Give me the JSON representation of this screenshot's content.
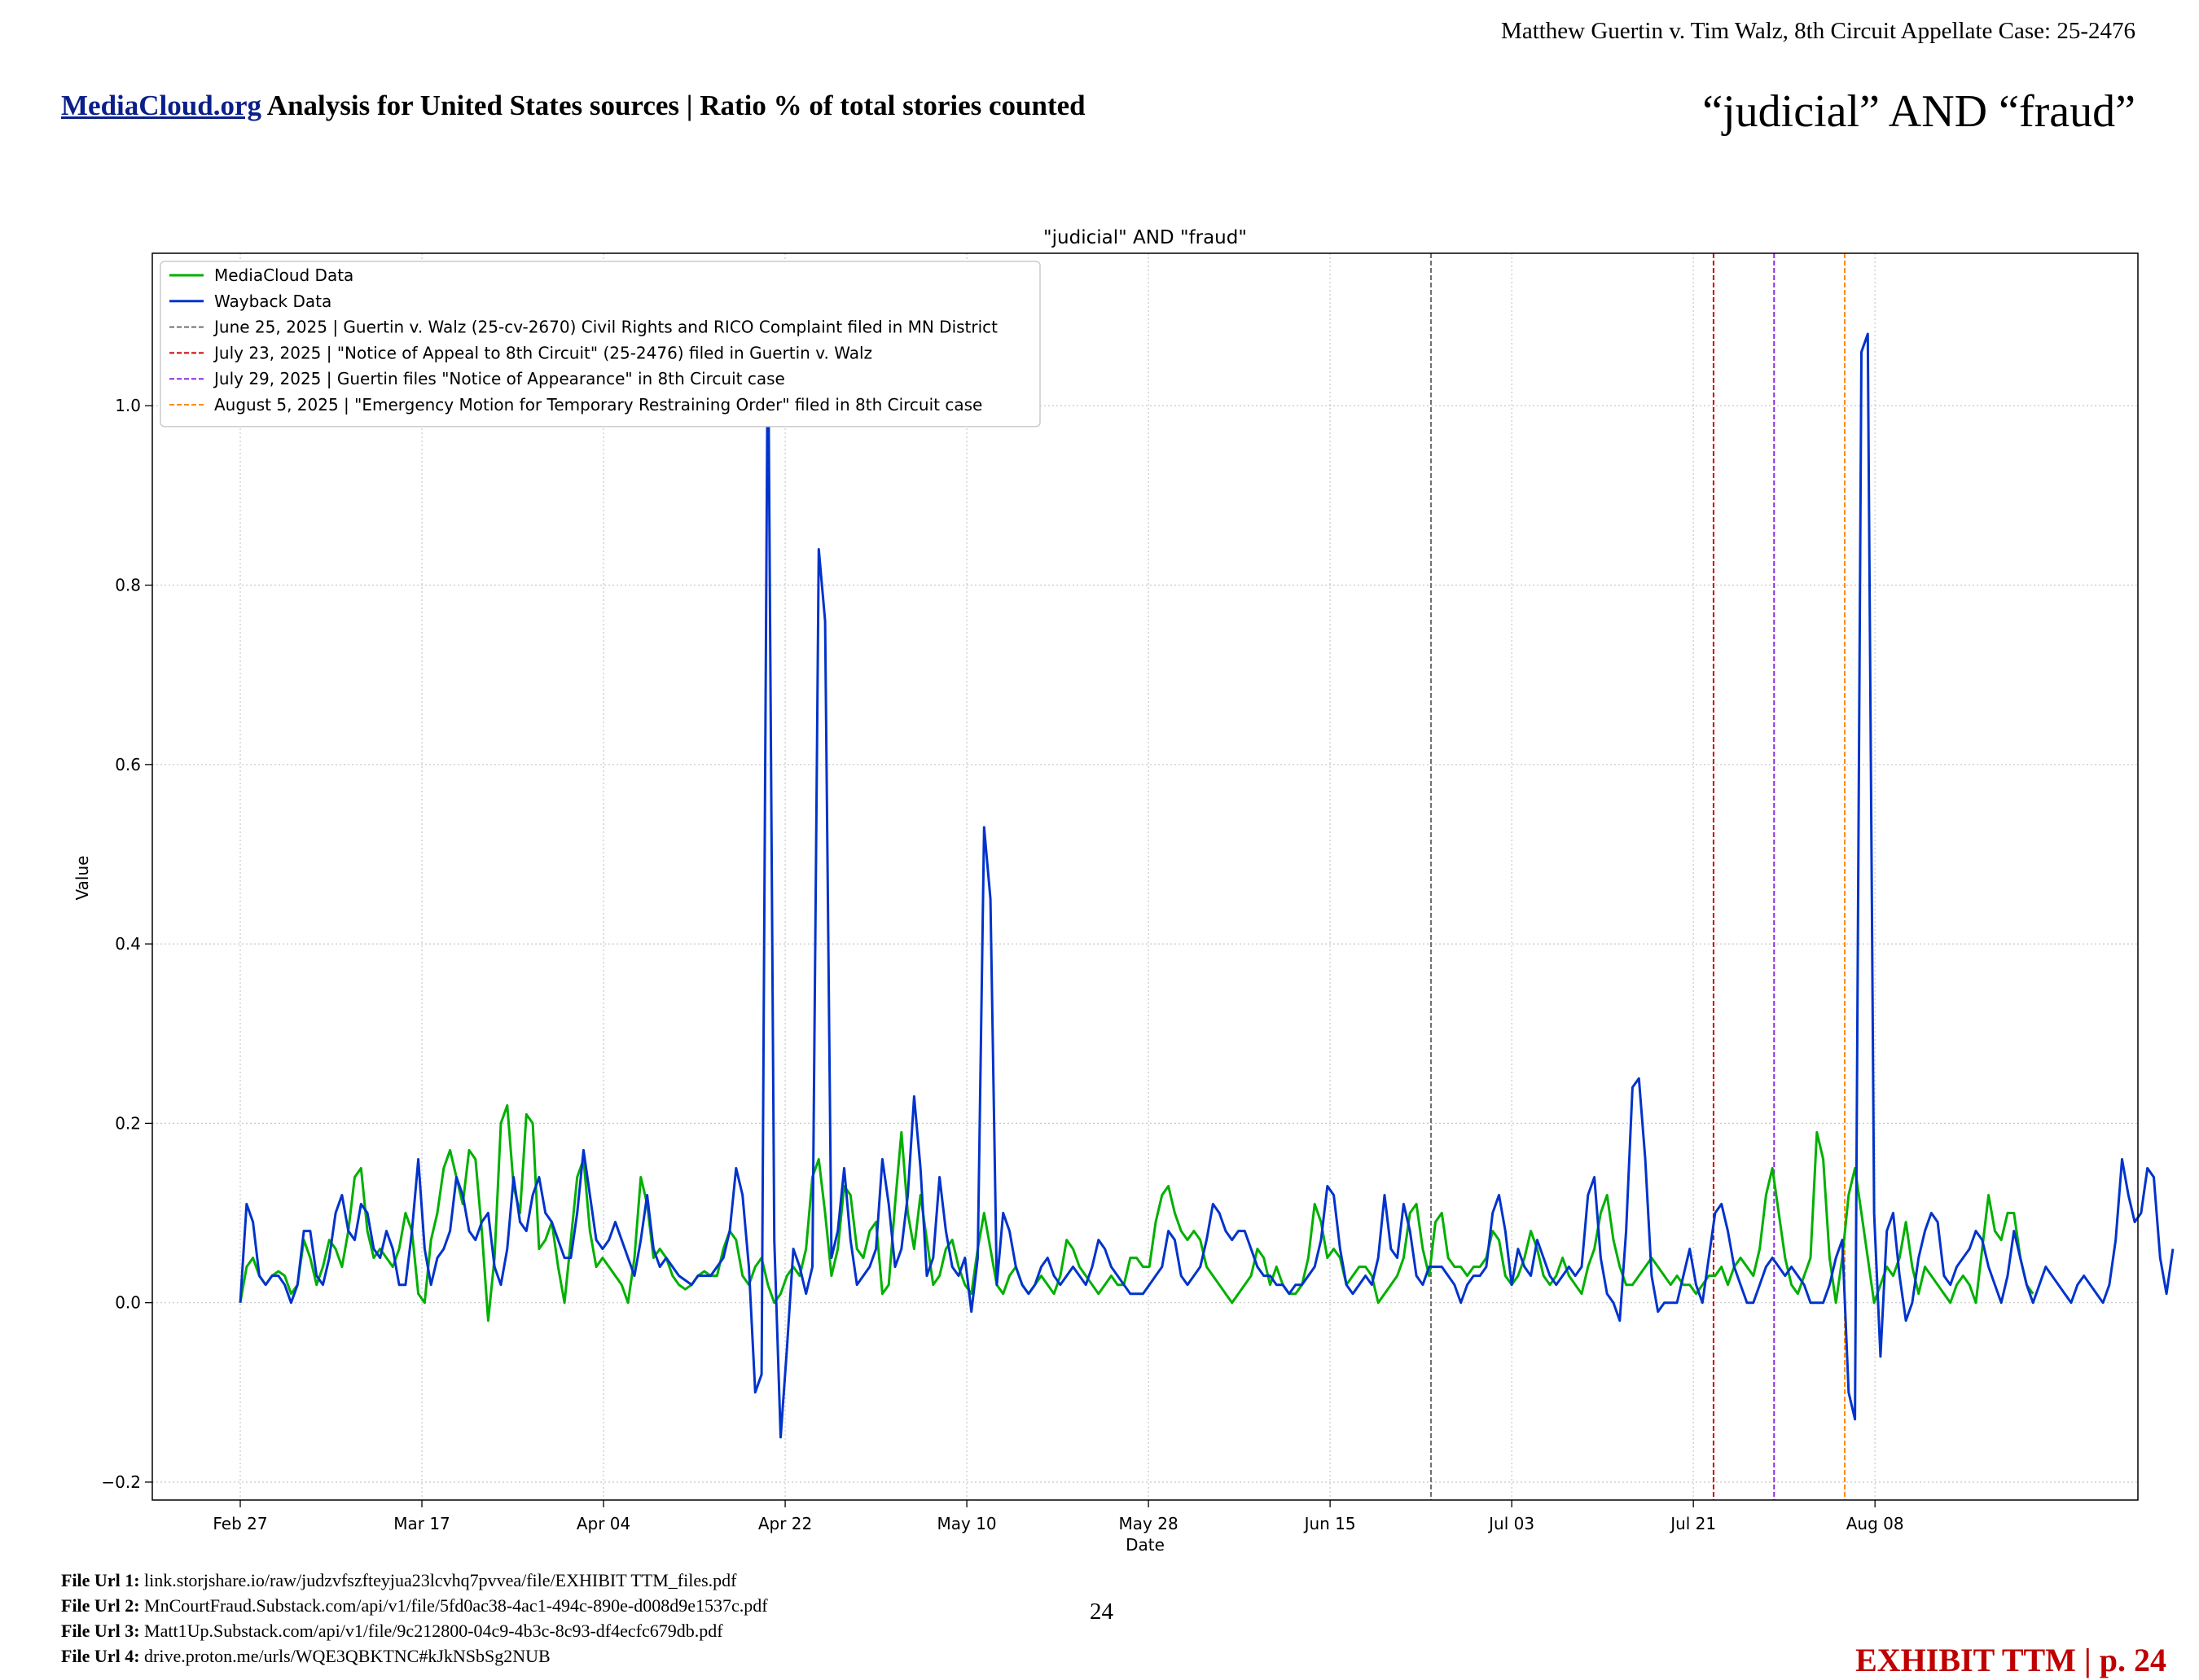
{
  "header": {
    "case_caption": "Matthew Guertin v. Tim Walz, 8th Circuit Appellate Case: 25-2476",
    "title_link": "MediaCloud.org",
    "title_rest": " Analysis for United States sources | Ratio % of total stories counted",
    "query": "“judicial” AND “fraud”"
  },
  "chart_data": {
    "type": "line",
    "title": "\"judicial\" AND \"fraud\"",
    "xlabel": "Date",
    "ylabel": "Value",
    "ylim": [
      -0.22,
      1.17
    ],
    "grid": true,
    "legend_position": "top-left",
    "x_ticks": [
      "Feb 27",
      "Mar 17",
      "Apr 04",
      "Apr 22",
      "May 10",
      "May 28",
      "Jun 15",
      "Jul 03",
      "Jul 21",
      "Aug 08"
    ],
    "y_ticks": [
      "−0.2",
      "0.0",
      "0.2",
      "0.4",
      "0.6",
      "0.8",
      "1.0"
    ],
    "x_start": "2025-02-27",
    "series": [
      {
        "name": "MediaCloud Data",
        "color": "#00b000",
        "values": [
          0.0,
          0.04,
          0.05,
          0.03,
          0.02,
          0.03,
          0.035,
          0.03,
          0.01,
          0.02,
          0.07,
          0.05,
          0.02,
          0.04,
          0.07,
          0.06,
          0.04,
          0.08,
          0.14,
          0.15,
          0.08,
          0.05,
          0.06,
          0.05,
          0.04,
          0.06,
          0.1,
          0.08,
          0.01,
          0.0,
          0.07,
          0.1,
          0.15,
          0.17,
          0.14,
          0.11,
          0.17,
          0.16,
          0.08,
          -0.02,
          0.05,
          0.2,
          0.22,
          0.13,
          0.1,
          0.21,
          0.2,
          0.06,
          0.07,
          0.09,
          0.04,
          0.0,
          0.07,
          0.14,
          0.16,
          0.08,
          0.04,
          0.05,
          0.04,
          0.03,
          0.02,
          0.0,
          0.05,
          0.14,
          0.11,
          0.05,
          0.06,
          0.05,
          0.03,
          0.02,
          0.015,
          0.02,
          0.03,
          0.035,
          0.03,
          0.03,
          0.06,
          0.08,
          0.07,
          0.03,
          0.02,
          0.04,
          0.05,
          0.02,
          0.0,
          0.01,
          0.03,
          0.04,
          0.03,
          0.06,
          0.14,
          0.16,
          0.1,
          0.03,
          0.06,
          0.13,
          0.12,
          0.06,
          0.05,
          0.08,
          0.09,
          0.01,
          0.02,
          0.11,
          0.19,
          0.1,
          0.06,
          0.12,
          0.07,
          0.02,
          0.03,
          0.06,
          0.07,
          0.04,
          0.02,
          0.01,
          0.06,
          0.1,
          0.06,
          0.02,
          0.01,
          0.03,
          0.04,
          0.02,
          0.01,
          0.02,
          0.03,
          0.02,
          0.01,
          0.03,
          0.07,
          0.06,
          0.04,
          0.03,
          0.02,
          0.01,
          0.02,
          0.03,
          0.02,
          0.02,
          0.05,
          0.05,
          0.04,
          0.04,
          0.09,
          0.12,
          0.13,
          0.1,
          0.08,
          0.07,
          0.08,
          0.07,
          0.04,
          0.03,
          0.02,
          0.01,
          0.0,
          0.01,
          0.02,
          0.03,
          0.06,
          0.05,
          0.02,
          0.04,
          0.02,
          0.01,
          0.01,
          0.02,
          0.05,
          0.11,
          0.09,
          0.05,
          0.06,
          0.05,
          0.02,
          0.03,
          0.04,
          0.04,
          0.03,
          0.0,
          0.01,
          0.02,
          0.03,
          0.05,
          0.1,
          0.11,
          0.06,
          0.03,
          0.09,
          0.1,
          0.05,
          0.04,
          0.04,
          0.03,
          0.04,
          0.04,
          0.05,
          0.08,
          0.07,
          0.03,
          0.02,
          0.03,
          0.05,
          0.08,
          0.06,
          0.03,
          0.02,
          0.03,
          0.05,
          0.03,
          0.02,
          0.01,
          0.04,
          0.06,
          0.1,
          0.12,
          0.07,
          0.04,
          0.02,
          0.02,
          0.03,
          0.04,
          0.05,
          0.04,
          0.03,
          0.02,
          0.03,
          0.02,
          0.02,
          0.01,
          0.02,
          0.03,
          0.03,
          0.04,
          0.02,
          0.04,
          0.05,
          0.04,
          0.03,
          0.06,
          0.12,
          0.15,
          0.1,
          0.05,
          0.02,
          0.01,
          0.03,
          0.05,
          0.19,
          0.16,
          0.05,
          0.0,
          0.05,
          0.12,
          0.15,
          0.1,
          0.05,
          0.0,
          0.02,
          0.04,
          0.03,
          0.05,
          0.09,
          0.04,
          0.01,
          0.04,
          0.03,
          0.02,
          0.01,
          0.0,
          0.02,
          0.03,
          0.02,
          0.0,
          0.06,
          0.12,
          0.08,
          0.07,
          0.1,
          0.1,
          0.05,
          0.02,
          0.01
        ]
      },
      {
        "name": "Wayback Data",
        "color": "#0033cc",
        "values": [
          0.0,
          0.11,
          0.09,
          0.03,
          0.02,
          0.03,
          0.03,
          0.02,
          0.0,
          0.02,
          0.08,
          0.08,
          0.03,
          0.02,
          0.05,
          0.1,
          0.12,
          0.08,
          0.07,
          0.11,
          0.1,
          0.06,
          0.05,
          0.08,
          0.06,
          0.02,
          0.02,
          0.08,
          0.16,
          0.06,
          0.02,
          0.05,
          0.06,
          0.08,
          0.14,
          0.12,
          0.08,
          0.07,
          0.09,
          0.1,
          0.04,
          0.02,
          0.06,
          0.14,
          0.09,
          0.08,
          0.12,
          0.14,
          0.1,
          0.09,
          0.07,
          0.05,
          0.05,
          0.1,
          0.17,
          0.12,
          0.07,
          0.06,
          0.07,
          0.09,
          0.07,
          0.05,
          0.03,
          0.07,
          0.12,
          0.06,
          0.04,
          0.05,
          0.04,
          0.03,
          0.025,
          0.02,
          0.03,
          0.03,
          0.03,
          0.04,
          0.05,
          0.08,
          0.15,
          0.12,
          0.04,
          -0.1,
          -0.08,
          1.11,
          0.07,
          -0.15,
          -0.05,
          0.06,
          0.04,
          0.01,
          0.04,
          0.84,
          0.76,
          0.05,
          0.08,
          0.15,
          0.07,
          0.02,
          0.03,
          0.04,
          0.06,
          0.16,
          0.11,
          0.04,
          0.06,
          0.12,
          0.23,
          0.15,
          0.03,
          0.05,
          0.14,
          0.08,
          0.04,
          0.03,
          0.05,
          -0.01,
          0.05,
          0.53,
          0.45,
          0.02,
          0.1,
          0.08,
          0.04,
          0.02,
          0.01,
          0.02,
          0.04,
          0.05,
          0.03,
          0.02,
          0.03,
          0.04,
          0.03,
          0.02,
          0.04,
          0.07,
          0.06,
          0.04,
          0.03,
          0.02,
          0.01,
          0.01,
          0.01,
          0.02,
          0.03,
          0.04,
          0.08,
          0.07,
          0.03,
          0.02,
          0.03,
          0.04,
          0.07,
          0.11,
          0.1,
          0.08,
          0.07,
          0.08,
          0.08,
          0.06,
          0.04,
          0.03,
          0.03,
          0.02,
          0.02,
          0.01,
          0.02,
          0.02,
          0.03,
          0.04,
          0.07,
          0.13,
          0.12,
          0.06,
          0.02,
          0.01,
          0.02,
          0.03,
          0.02,
          0.05,
          0.12,
          0.06,
          0.05,
          0.11,
          0.08,
          0.03,
          0.02,
          0.04,
          0.04,
          0.04,
          0.03,
          0.02,
          0.0,
          0.02,
          0.03,
          0.03,
          0.04,
          0.1,
          0.12,
          0.08,
          0.02,
          0.06,
          0.04,
          0.03,
          0.07,
          0.05,
          0.03,
          0.02,
          0.03,
          0.04,
          0.03,
          0.04,
          0.12,
          0.14,
          0.05,
          0.01,
          0.0,
          -0.02,
          0.08,
          0.24,
          0.25,
          0.16,
          0.03,
          -0.01,
          0.0,
          0.0,
          0.0,
          0.03,
          0.06,
          0.02,
          0.0,
          0.05,
          0.1,
          0.11,
          0.08,
          0.04,
          0.02,
          0.0,
          0.0,
          0.02,
          0.04,
          0.05,
          0.04,
          0.03,
          0.04,
          0.03,
          0.02,
          0.0,
          0.0,
          0.0,
          0.02,
          0.05,
          0.07,
          -0.1,
          -0.13,
          1.06,
          1.08,
          0.1,
          -0.06,
          0.08,
          0.1,
          0.03,
          -0.02,
          0.0,
          0.05,
          0.08,
          0.1,
          0.09,
          0.03,
          0.02,
          0.04,
          0.05,
          0.06,
          0.08,
          0.07,
          0.04,
          0.02,
          0.0,
          0.03,
          0.08,
          0.05,
          0.02,
          0.0,
          0.02,
          0.04,
          0.03,
          0.02,
          0.01,
          0.0,
          0.02,
          0.03,
          0.02,
          0.01,
          0.0,
          0.02,
          0.07,
          0.16,
          0.12,
          0.09,
          0.1,
          0.15,
          0.14,
          0.05,
          0.01,
          0.06
        ]
      }
    ],
    "events": [
      {
        "date": "2025-06-25",
        "label": "June 25, 2025 | Guertin v. Walz (25-cv-2670) Civil Rights and RICO Complaint filed in MN District",
        "color": "#707070"
      },
      {
        "date": "2025-07-23",
        "label": "July 23, 2025 | \"Notice of Appeal to 8th Circuit\" (25-2476) filed in Guertin v. Walz",
        "color": "#cc0000"
      },
      {
        "date": "2025-07-29",
        "label": "July 29, 2025 | Guertin files \"Notice of Appearance\" in 8th Circuit case",
        "color": "#8a2be2"
      },
      {
        "date": "2025-08-05",
        "label": "August 5, 2025 | \"Emergency Motion for Temporary Restraining Order\" filed in 8th Circuit case",
        "color": "#ff8c00"
      }
    ]
  },
  "footer": {
    "urls": [
      {
        "label": "File Url 1:",
        "value": "link.storjshare.io/raw/judzvfszfteyjua23lcvhq7pvvea/file/EXHIBIT TTM_files.pdf"
      },
      {
        "label": "File Url 2:",
        "value": "MnCourtFraud.Substack.com/api/v1/file/5fd0ac38-4ac1-494c-890e-d008d9e1537c.pdf"
      },
      {
        "label": "File Url 3:",
        "value": "Matt1Up.Substack.com/api/v1/file/9c212800-04c9-4b3c-8c93-df4ecfc679db.pdf"
      },
      {
        "label": "File Url 4:",
        "value": "drive.proton.me/urls/WQE3QBKTNC#kJkNSbSg2NUB"
      }
    ],
    "page_number": "24",
    "exhibit": "EXHIBIT TTM | p. 24"
  }
}
